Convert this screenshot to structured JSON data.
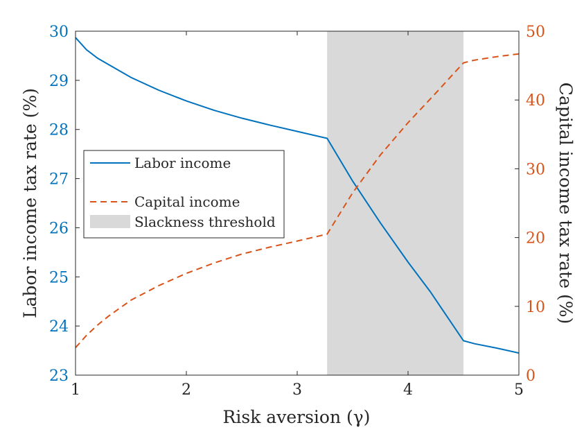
{
  "chart_data": {
    "type": "line",
    "xlabel": "Risk aversion (γ)",
    "ylabel_left": "Labor income tax rate (%)",
    "ylabel_right": "Capital income tax rate (%)",
    "xlim": [
      1,
      5
    ],
    "ylim_left": [
      23,
      30
    ],
    "ylim_right": [
      0,
      50
    ],
    "x_ticks": [
      "1",
      "2",
      "3",
      "4",
      "5"
    ],
    "y_left_ticks": [
      "23",
      "24",
      "25",
      "26",
      "27",
      "28",
      "29",
      "30"
    ],
    "y_right_ticks": [
      "0",
      "10",
      "20",
      "30",
      "40",
      "50"
    ],
    "grid": false,
    "legend_position": "middle-left",
    "shaded_region": {
      "name": "Slackness threshold",
      "x_start": 3.27,
      "x_end": 4.5,
      "color": "#d9d9d9"
    },
    "series": [
      {
        "name": "Labor income",
        "axis": "left",
        "style": "solid",
        "color": "#0072BD",
        "x": [
          1.0,
          1.1,
          1.2,
          1.3,
          1.5,
          1.75,
          2.0,
          2.25,
          2.5,
          2.75,
          3.0,
          3.27,
          3.5,
          3.75,
          4.0,
          4.2,
          4.5,
          4.6,
          4.8,
          5.0
        ],
        "y": [
          29.87,
          29.62,
          29.45,
          29.32,
          29.06,
          28.8,
          28.58,
          28.39,
          28.23,
          28.09,
          27.96,
          27.82,
          26.95,
          26.1,
          25.3,
          24.7,
          23.7,
          23.64,
          23.55,
          23.45
        ]
      },
      {
        "name": "Capital income",
        "axis": "right",
        "style": "dashed",
        "color": "#D95319",
        "x": [
          1.0,
          1.1,
          1.2,
          1.3,
          1.5,
          1.75,
          2.0,
          2.25,
          2.5,
          2.75,
          3.0,
          3.27,
          3.5,
          3.75,
          4.0,
          4.25,
          4.5,
          4.6,
          4.8,
          5.0
        ],
        "y": [
          4,
          5.8,
          7.3,
          8.6,
          10.9,
          13.0,
          14.8,
          16.3,
          17.6,
          18.6,
          19.5,
          20.5,
          26.5,
          32.0,
          36.7,
          41.0,
          45.4,
          45.8,
          46.3,
          46.7
        ]
      }
    ]
  }
}
